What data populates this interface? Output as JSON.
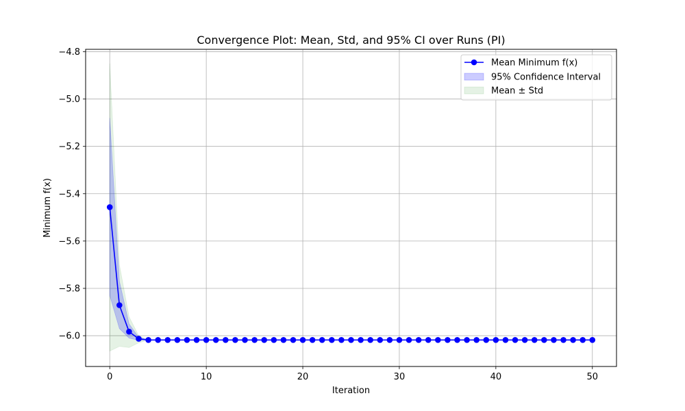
{
  "chart_data": {
    "type": "line",
    "title": "Convergence Plot: Mean, Std, and 95% CI over Runs (PI)",
    "xlabel": "Iteration",
    "ylabel": "Minimum f(x)",
    "xlim": [
      -2.5,
      52.5
    ],
    "ylim": [
      -6.13,
      -4.79
    ],
    "xticks": [
      0,
      10,
      20,
      30,
      40,
      50
    ],
    "xtick_labels": [
      "0",
      "10",
      "20",
      "30",
      "40",
      "50"
    ],
    "yticks": [
      -4.8,
      -5.0,
      -5.2,
      -5.4,
      -5.6,
      -5.8,
      -6.0
    ],
    "ytick_labels": [
      "−4.8",
      "−5.0",
      "−5.2",
      "−5.4",
      "−5.6",
      "−5.8",
      "−6.0"
    ],
    "grid": true,
    "legend_position": "top-right",
    "x": [
      0,
      1,
      2,
      3,
      4,
      5,
      6,
      7,
      8,
      9,
      10,
      11,
      12,
      13,
      14,
      15,
      16,
      17,
      18,
      19,
      20,
      21,
      22,
      23,
      24,
      25,
      26,
      27,
      28,
      29,
      30,
      31,
      32,
      33,
      34,
      35,
      36,
      37,
      38,
      39,
      40,
      41,
      42,
      43,
      44,
      45,
      46,
      47,
      48,
      49,
      50
    ],
    "series": [
      {
        "name": "Mean Minimum f(x)",
        "kind": "line-markers",
        "color": "#0000ff",
        "values": [
          -5.457,
          -5.871,
          -5.983,
          -6.013,
          -6.018,
          -6.018,
          -6.018,
          -6.018,
          -6.018,
          -6.018,
          -6.018,
          -6.018,
          -6.018,
          -6.018,
          -6.018,
          -6.018,
          -6.018,
          -6.018,
          -6.018,
          -6.018,
          -6.018,
          -6.018,
          -6.018,
          -6.018,
          -6.018,
          -6.018,
          -6.018,
          -6.018,
          -6.018,
          -6.018,
          -6.018,
          -6.018,
          -6.018,
          -6.018,
          -6.018,
          -6.018,
          -6.018,
          -6.018,
          -6.018,
          -6.018,
          -6.018,
          -6.018,
          -6.018,
          -6.018,
          -6.018,
          -6.018,
          -6.018,
          -6.018,
          -6.018,
          -6.018,
          -6.018
        ]
      },
      {
        "name": "95% Confidence Interval",
        "kind": "band",
        "color": "#0000ff",
        "lower": [
          -5.83,
          -5.97,
          -6.01,
          -6.02,
          -6.018,
          -6.018,
          -6.018,
          -6.018,
          -6.018,
          -6.018,
          -6.018,
          -6.018,
          -6.018,
          -6.018,
          -6.018,
          -6.018,
          -6.018,
          -6.018,
          -6.018,
          -6.018,
          -6.018,
          -6.018,
          -6.018,
          -6.018,
          -6.018,
          -6.018,
          -6.018,
          -6.018,
          -6.018,
          -6.018,
          -6.018,
          -6.018,
          -6.018,
          -6.018,
          -6.018,
          -6.018,
          -6.018,
          -6.018,
          -6.018,
          -6.018,
          -6.018,
          -6.018,
          -6.018,
          -6.018,
          -6.018,
          -6.018,
          -6.018,
          -6.018,
          -6.018,
          -6.018,
          -6.018
        ],
        "upper": [
          -5.08,
          -5.77,
          -5.95,
          -6.007,
          -6.018,
          -6.018,
          -6.018,
          -6.018,
          -6.018,
          -6.018,
          -6.018,
          -6.018,
          -6.018,
          -6.018,
          -6.018,
          -6.018,
          -6.018,
          -6.018,
          -6.018,
          -6.018,
          -6.018,
          -6.018,
          -6.018,
          -6.018,
          -6.018,
          -6.018,
          -6.018,
          -6.018,
          -6.018,
          -6.018,
          -6.018,
          -6.018,
          -6.018,
          -6.018,
          -6.018,
          -6.018,
          -6.018,
          -6.018,
          -6.018,
          -6.018,
          -6.018,
          -6.018,
          -6.018,
          -6.018,
          -6.018,
          -6.018,
          -6.018,
          -6.018,
          -6.018,
          -6.018,
          -6.018
        ]
      },
      {
        "name": "Mean ± Std",
        "kind": "band",
        "color": "#008000",
        "lower": [
          -6.065,
          -6.045,
          -6.05,
          -6.03,
          -6.018,
          -6.018,
          -6.018,
          -6.018,
          -6.018,
          -6.018,
          -6.018,
          -6.018,
          -6.018,
          -6.018,
          -6.018,
          -6.018,
          -6.018,
          -6.018,
          -6.018,
          -6.018,
          -6.018,
          -6.018,
          -6.018,
          -6.018,
          -6.018,
          -6.018,
          -6.018,
          -6.018,
          -6.018,
          -6.018,
          -6.018,
          -6.018,
          -6.018,
          -6.018,
          -6.018,
          -6.018,
          -6.018,
          -6.018,
          -6.018,
          -6.018,
          -6.018,
          -6.018,
          -6.018,
          -6.018,
          -6.018,
          -6.018,
          -6.018,
          -6.018,
          -6.018,
          -6.018,
          -6.018
        ],
        "upper": [
          -4.85,
          -5.7,
          -5.92,
          -6.0,
          -6.018,
          -6.018,
          -6.018,
          -6.018,
          -6.018,
          -6.018,
          -6.018,
          -6.018,
          -6.018,
          -6.018,
          -6.018,
          -6.018,
          -6.018,
          -6.018,
          -6.018,
          -6.018,
          -6.018,
          -6.018,
          -6.018,
          -6.018,
          -6.018,
          -6.018,
          -6.018,
          -6.018,
          -6.018,
          -6.018,
          -6.018,
          -6.018,
          -6.018,
          -6.018,
          -6.018,
          -6.018,
          -6.018,
          -6.018,
          -6.018,
          -6.018,
          -6.018,
          -6.018,
          -6.018,
          -6.018,
          -6.018,
          -6.018,
          -6.018,
          -6.018,
          -6.018,
          -6.018,
          -6.018
        ]
      }
    ]
  },
  "legend": {
    "items": [
      "Mean Minimum f(x)",
      "95% Confidence Interval",
      "Mean ± Std"
    ]
  }
}
